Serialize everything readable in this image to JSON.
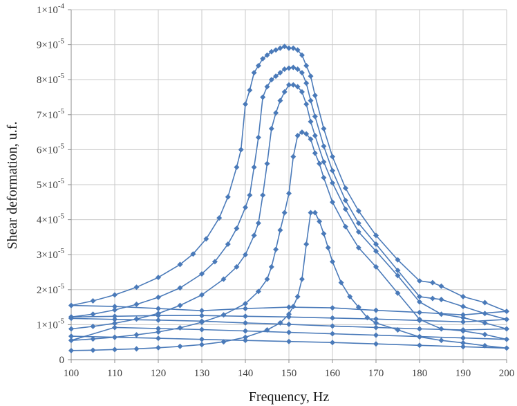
{
  "chart_data": {
    "type": "line",
    "xlabel": "Frequency, Hz",
    "ylabel": "Shear deformation, u.f.",
    "xlim": [
      100,
      200
    ],
    "ylim": [
      0,
      0.0001
    ],
    "x_ticks": [
      "100",
      "110",
      "120",
      "130",
      "140",
      "150",
      "160",
      "170",
      "180",
      "190",
      "200"
    ],
    "y_ticks": [
      {
        "value": 0,
        "mantissa": "0",
        "exponent": ""
      },
      {
        "value": 1e-05,
        "mantissa": "1×10",
        "exponent": "-5"
      },
      {
        "value": 2e-05,
        "mantissa": "2×10",
        "exponent": "-5"
      },
      {
        "value": 3e-05,
        "mantissa": "3×10",
        "exponent": "-5"
      },
      {
        "value": 4e-05,
        "mantissa": "4×10",
        "exponent": "-5"
      },
      {
        "value": 5e-05,
        "mantissa": "5×10",
        "exponent": "-5"
      },
      {
        "value": 6e-05,
        "mantissa": "6×10",
        "exponent": "-5"
      },
      {
        "value": 7e-05,
        "mantissa": "7×10",
        "exponent": "-5"
      },
      {
        "value": 8e-05,
        "mantissa": "8×10",
        "exponent": "-5"
      },
      {
        "value": 9e-05,
        "mantissa": "9×10",
        "exponent": "-5"
      },
      {
        "value": 0.0001,
        "mantissa": "1×10",
        "exponent": "-4"
      }
    ],
    "grid": true,
    "legend": "none",
    "line_color": "#4a7ab9",
    "marker": "diamond",
    "series": [
      {
        "x": [
          100,
          105,
          110,
          115,
          120,
          125,
          128,
          131,
          134,
          136,
          138,
          139,
          140,
          141,
          142,
          143,
          144,
          145,
          146,
          147,
          148,
          149,
          150,
          151,
          152,
          153,
          154,
          155,
          156,
          158,
          160,
          163,
          166,
          170,
          175,
          180,
          183,
          185,
          190,
          195,
          200,
          190,
          180,
          170,
          160,
          150,
          140,
          130,
          120,
          110,
          100
        ],
        "y": [
          1.55e-05,
          1.68e-05,
          1.85e-05,
          2.07e-05,
          2.35e-05,
          2.72e-05,
          3.02e-05,
          3.45e-05,
          4.05e-05,
          4.65e-05,
          5.5e-05,
          6e-05,
          7.3e-05,
          7.7e-05,
          8.2e-05,
          8.4e-05,
          8.6e-05,
          8.7e-05,
          8.8e-05,
          8.85e-05,
          8.9e-05,
          8.95e-05,
          8.9e-05,
          8.9e-05,
          8.85e-05,
          8.7e-05,
          8.4e-05,
          8.1e-05,
          7.55e-05,
          6.6e-05,
          5.8e-05,
          4.9e-05,
          4.25e-05,
          3.55e-05,
          2.85e-05,
          2.25e-05,
          2.2e-05,
          2.1e-05,
          1.8e-05,
          1.63e-05,
          1.38e-05,
          1.28e-05,
          1.35e-05,
          1.41e-05,
          1.48e-05,
          1.5e-05,
          1.46e-05,
          1.4e-05,
          1.46e-05,
          1.52e-05,
          1.55e-05
        ]
      },
      {
        "x": [
          100,
          105,
          110,
          115,
          120,
          125,
          130,
          133,
          136,
          138,
          140,
          141,
          142,
          143,
          144,
          145,
          146,
          147,
          148,
          149,
          150,
          151,
          152,
          153,
          154,
          155,
          156,
          158,
          160,
          163,
          166,
          170,
          175,
          180,
          183,
          185,
          190,
          195,
          200,
          190,
          180,
          170,
          160,
          150,
          140,
          130,
          120,
          110,
          100
        ],
        "y": [
          1.22e-05,
          1.3e-05,
          1.42e-05,
          1.58e-05,
          1.78e-05,
          2.05e-05,
          2.45e-05,
          2.8e-05,
          3.3e-05,
          3.75e-05,
          4.35e-05,
          4.7e-05,
          5.5e-05,
          6.35e-05,
          7.5e-05,
          7.8e-05,
          8e-05,
          8.1e-05,
          8.2e-05,
          8.3e-05,
          8.33e-05,
          8.35e-05,
          8.3e-05,
          8.2e-05,
          7.9e-05,
          7.4e-05,
          6.95e-05,
          6.1e-05,
          5.4e-05,
          4.55e-05,
          3.9e-05,
          3.3e-05,
          2.55e-05,
          1.8e-05,
          1.75e-05,
          1.72e-05,
          1.52e-05,
          1.32e-05,
          1.15e-05,
          1.08e-05,
          1.12e-05,
          1.16e-05,
          1.19e-05,
          1.22e-05,
          1.24e-05,
          1.26e-05,
          1.26e-05,
          1.24e-05,
          1.22e-05
        ]
      },
      {
        "x": [
          100,
          105,
          110,
          115,
          120,
          125,
          130,
          135,
          138,
          140,
          142,
          143,
          144,
          145,
          146,
          147,
          148,
          149,
          150,
          151,
          152,
          153,
          154,
          155,
          156,
          158,
          160,
          163,
          166,
          170,
          175,
          180,
          185,
          190,
          195,
          200,
          190,
          180,
          170,
          160,
          150,
          140,
          130,
          120,
          110,
          100
        ],
        "y": [
          8.8e-06,
          9.5e-06,
          1.04e-05,
          1.16e-05,
          1.32e-05,
          1.55e-05,
          1.85e-05,
          2.3e-05,
          2.65e-05,
          3e-05,
          3.55e-05,
          3.9e-05,
          4.7e-05,
          5.6e-05,
          6.6e-05,
          7.05e-05,
          7.4e-05,
          7.65e-05,
          7.85e-05,
          7.85e-05,
          7.8e-05,
          7.65e-05,
          7.3e-05,
          6.8e-05,
          6.4e-05,
          5.65e-05,
          5.05e-05,
          4.3e-05,
          3.65e-05,
          3.1e-05,
          2.4e-05,
          1.65e-05,
          1.3e-05,
          1.2e-05,
          1.05e-05,
          8.8e-06,
          8.5e-06,
          8.8e-06,
          9.2e-06,
          9.6e-06,
          1.01e-05,
          1.05e-05,
          1.1e-05,
          1.13e-05,
          1.15e-05,
          1.18e-05
        ]
      },
      {
        "x": [
          100,
          105,
          110,
          115,
          120,
          125,
          130,
          135,
          140,
          143,
          145,
          146,
          147,
          148,
          149,
          150,
          151,
          152,
          153,
          154,
          155,
          156,
          157,
          158,
          160,
          163,
          166,
          170,
          175,
          180,
          185,
          190,
          195,
          200,
          190,
          180,
          170,
          160,
          150,
          140,
          130,
          120,
          110,
          100
        ],
        "y": [
          5.5e-06,
          5.9e-06,
          6.4e-06,
          7.1e-06,
          7.9e-06,
          9.1e-06,
          1.07e-05,
          1.28e-05,
          1.6e-05,
          1.95e-05,
          2.3e-05,
          2.65e-05,
          3.15e-05,
          3.7e-05,
          4.2e-05,
          4.75e-05,
          5.8e-05,
          6.4e-05,
          6.5e-05,
          6.45e-05,
          6.3e-05,
          5.9e-05,
          5.6e-05,
          5.2e-05,
          4.5e-05,
          3.8e-05,
          3.2e-05,
          2.65e-05,
          1.9e-05,
          1.15e-05,
          8.8e-06,
          8.2e-06,
          7.2e-06,
          5.8e-06,
          6.2e-06,
          6.6e-06,
          7e-06,
          7.4e-06,
          7.8e-06,
          8.2e-06,
          8.6e-06,
          8.9e-06,
          9.2e-06,
          5.5e-06
        ]
      },
      {
        "x": [
          100,
          105,
          110,
          115,
          120,
          125,
          130,
          135,
          140,
          145,
          148,
          150,
          151,
          152,
          153,
          154,
          155,
          156,
          157,
          158,
          159,
          160,
          162,
          164,
          166,
          168,
          170,
          175,
          180,
          185,
          190,
          195,
          200,
          190,
          180,
          170,
          160,
          150,
          140,
          130,
          120,
          110,
          100
        ],
        "y": [
          2.6e-06,
          2.7e-06,
          2.9e-06,
          3.1e-06,
          3.4e-06,
          3.8e-06,
          4.3e-06,
          5.1e-06,
          6.4e-06,
          8.5e-06,
          1.05e-05,
          1.3e-05,
          1.52e-05,
          1.8e-05,
          2.3e-05,
          3.3e-05,
          4.2e-05,
          4.2e-05,
          3.95e-05,
          3.6e-05,
          3.2e-05,
          2.8e-05,
          2.2e-05,
          1.8e-05,
          1.5e-05,
          1.2e-05,
          1.05e-05,
          8.5e-06,
          6.5e-06,
          5.5e-06,
          4.8e-06,
          4e-06,
          3.3e-06,
          3.7e-06,
          4.1e-06,
          4.5e-06,
          4.9e-06,
          5.2e-06,
          5.5e-06,
          5.8e-06,
          6.1e-06,
          6.4e-06,
          6.7e-06
        ]
      }
    ]
  }
}
